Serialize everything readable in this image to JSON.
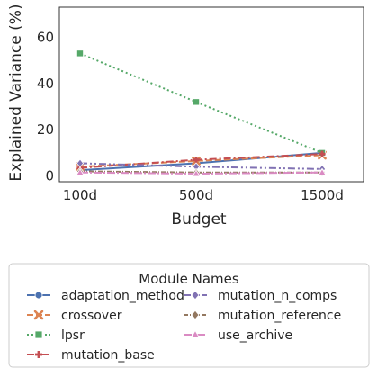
{
  "chart_data": {
    "type": "line",
    "xlabel": "Budget",
    "ylabel": "Explained Variance (%)",
    "categories": [
      "100d",
      "500d",
      "1500d"
    ],
    "yticks": [
      0,
      20,
      40,
      60
    ],
    "ylim": [
      -2.5,
      73
    ],
    "grid": false,
    "legend_title": "Module Names",
    "legend_position": "bottom",
    "series": [
      {
        "name": "adaptation_method",
        "values": [
          2.5,
          5.5,
          10.0
        ],
        "color": "#4c72b0",
        "dash": "",
        "marker": "circle"
      },
      {
        "name": "crossover",
        "values": [
          4.0,
          6.5,
          9.0
        ],
        "color": "#dd8452",
        "dash": "7,3",
        "marker": "x"
      },
      {
        "name": "lpsr",
        "values": [
          53.0,
          32.0,
          10.0
        ],
        "color": "#55a868",
        "dash": "2,3",
        "marker": "square"
      },
      {
        "name": "mutation_base",
        "values": [
          3.5,
          7.0,
          9.5
        ],
        "color": "#c44e52",
        "dash": "8,3,2,3",
        "marker": "plus"
      },
      {
        "name": "mutation_n_comps",
        "values": [
          5.5,
          4.0,
          3.0
        ],
        "color": "#8172b3",
        "dash": "8,3,2,3,2,3",
        "marker": "diamond"
      },
      {
        "name": "mutation_reference",
        "values": [
          2.0,
          1.5,
          1.5
        ],
        "color": "#937860",
        "dash": "5,2,1,2",
        "marker": "diamond"
      },
      {
        "name": "use_archive",
        "values": [
          1.5,
          1.0,
          1.5
        ],
        "color": "#da8bc3",
        "dash": "9,2,2,2",
        "marker": "triangle"
      }
    ]
  }
}
